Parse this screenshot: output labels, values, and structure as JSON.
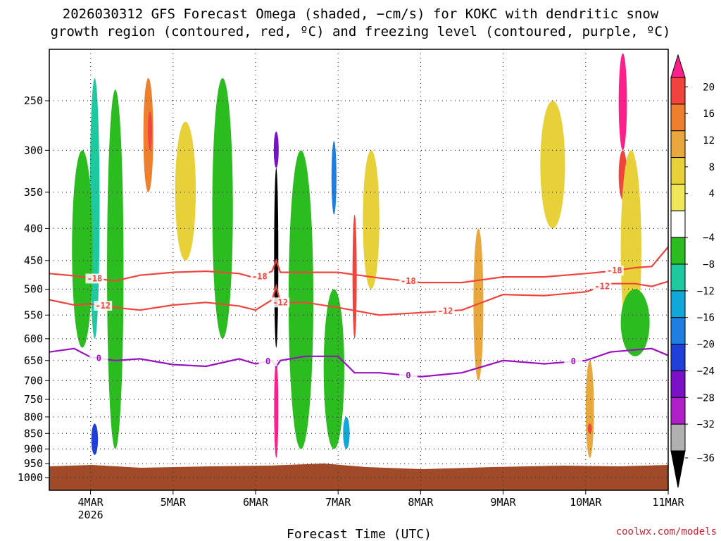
{
  "title_line1": "2026030312 GFS Forecast Omega (shaded, −cm/s) for KOKC with dendritic snow",
  "title_line2": "growth region (contoured, red, ºC) and freezing level (contoured, purple, ºC)",
  "credit": "coolwx.com/models",
  "chart_data": {
    "type": "heatmap",
    "title": "2026030312 GFS Forecast Omega (shaded, −cm/s) for KOKC with dendritic snow growth region (contoured, red, ºC) and freezing level (contoured, purple, ºC)",
    "xlabel": "Forecast Time (UTC)",
    "ylabel": "",
    "x_range_days": [
      3.5,
      11.0
    ],
    "y_range_hpa": [
      200,
      1040
    ],
    "y_ticks": [
      "250",
      "300",
      "350",
      "400",
      "450",
      "500",
      "550",
      "600",
      "650",
      "700",
      "750",
      "800",
      "850",
      "900",
      "950",
      "1000"
    ],
    "x_ticks": [
      {
        "label": "4MAR",
        "sublabel": "2026",
        "day": 4
      },
      {
        "label": "5MAR",
        "sublabel": "",
        "day": 5
      },
      {
        "label": "6MAR",
        "sublabel": "",
        "day": 6
      },
      {
        "label": "7MAR",
        "sublabel": "",
        "day": 7
      },
      {
        "label": "8MAR",
        "sublabel": "",
        "day": 8
      },
      {
        "label": "9MAR",
        "sublabel": "",
        "day": 9
      },
      {
        "label": "10MAR",
        "sublabel": "",
        "day": 10
      },
      {
        "label": "11MAR",
        "sublabel": "",
        "day": 11
      }
    ],
    "colorbar": {
      "levels": [
        "20",
        "16",
        "12",
        "8",
        "4",
        "−4",
        "−8",
        "−12",
        "−16",
        "−20",
        "−24",
        "−28",
        "−32",
        "−36"
      ],
      "colors": [
        "#ff1f8a",
        "#f0443c",
        "#ee7f2c",
        "#e8a83c",
        "#e8d038",
        "#f0e85a",
        "#ffffff",
        "#2bbd1f",
        "#1fc9a0",
        "#10a8d8",
        "#1f7fe0",
        "#1f3fd8",
        "#7a10c8",
        "#b020c8",
        "#b0b0b0",
        "#000000"
      ]
    },
    "omega_cells": [
      {
        "day": 4.05,
        "p_top": 230,
        "p_bot": 600,
        "width": 0.12,
        "value": -12
      },
      {
        "day": 3.9,
        "p_top": 300,
        "p_bot": 620,
        "width": 0.25,
        "value": -6
      },
      {
        "day": 4.05,
        "p_top": 820,
        "p_bot": 920,
        "width": 0.08,
        "value": -24
      },
      {
        "day": 4.3,
        "p_top": 240,
        "p_bot": 900,
        "width": 0.2,
        "value": -6
      },
      {
        "day": 4.7,
        "p_top": 230,
        "p_bot": 350,
        "width": 0.12,
        "value": 12
      },
      {
        "day": 4.72,
        "p_top": 260,
        "p_bot": 300,
        "width": 0.05,
        "value": 18
      },
      {
        "day": 5.15,
        "p_top": 270,
        "p_bot": 450,
        "width": 0.25,
        "value": 6
      },
      {
        "day": 5.6,
        "p_top": 230,
        "p_bot": 600,
        "width": 0.25,
        "value": -6
      },
      {
        "day": 6.25,
        "p_top": 320,
        "p_bot": 620,
        "width": 0.05,
        "value": -40
      },
      {
        "day": 6.25,
        "p_top": 280,
        "p_bot": 320,
        "width": 0.06,
        "value": -26
      },
      {
        "day": 6.25,
        "p_top": 650,
        "p_bot": 930,
        "width": 0.05,
        "value": 20
      },
      {
        "day": 6.55,
        "p_top": 300,
        "p_bot": 900,
        "width": 0.3,
        "value": -6
      },
      {
        "day": 6.95,
        "p_top": 290,
        "p_bot": 380,
        "width": 0.06,
        "value": -18
      },
      {
        "day": 7.2,
        "p_top": 380,
        "p_bot": 600,
        "width": 0.05,
        "value": 18
      },
      {
        "day": 7.1,
        "p_top": 800,
        "p_bot": 900,
        "width": 0.08,
        "value": -14
      },
      {
        "day": 6.95,
        "p_top": 500,
        "p_bot": 900,
        "width": 0.25,
        "value": -6
      },
      {
        "day": 7.4,
        "p_top": 300,
        "p_bot": 500,
        "width": 0.2,
        "value": 6
      },
      {
        "day": 8.7,
        "p_top": 400,
        "p_bot": 700,
        "width": 0.12,
        "value": 8
      },
      {
        "day": 9.6,
        "p_top": 250,
        "p_bot": 400,
        "width": 0.3,
        "value": 6
      },
      {
        "day": 10.05,
        "p_top": 650,
        "p_bot": 930,
        "width": 0.1,
        "value": 10
      },
      {
        "day": 10.05,
        "p_top": 820,
        "p_bot": 850,
        "width": 0.04,
        "value": 18
      },
      {
        "day": 10.45,
        "p_top": 210,
        "p_bot": 300,
        "width": 0.1,
        "value": 20
      },
      {
        "day": 10.45,
        "p_top": 300,
        "p_bot": 360,
        "width": 0.1,
        "value": 16
      },
      {
        "day": 10.55,
        "p_top": 300,
        "p_bot": 620,
        "width": 0.25,
        "value": 6
      },
      {
        "day": 10.6,
        "p_top": 500,
        "p_bot": 640,
        "width": 0.35,
        "value": -6
      }
    ],
    "series": [
      {
        "name": "-18",
        "color": "#f0443c",
        "label_days": [
          4.05,
          6.05,
          7.85,
          10.35
        ],
        "x": [
          3.5,
          3.8,
          4.0,
          4.3,
          4.6,
          5.0,
          5.4,
          5.8,
          6.0,
          6.2,
          6.25,
          6.3,
          6.6,
          7.0,
          7.5,
          8.0,
          8.5,
          9.0,
          9.5,
          10.0,
          10.3,
          10.6,
          10.8,
          11.0
        ],
        "p": [
          472,
          476,
          480,
          485,
          475,
          470,
          468,
          472,
          480,
          468,
          450,
          470,
          470,
          470,
          480,
          488,
          488,
          478,
          478,
          472,
          468,
          462,
          460,
          428
        ]
      },
      {
        "name": "-12",
        "color": "#f0443c",
        "label_days": [
          4.15,
          6.3,
          8.3,
          10.2
        ],
        "x": [
          3.5,
          3.8,
          4.0,
          4.3,
          4.6,
          5.0,
          5.4,
          5.8,
          6.0,
          6.2,
          6.25,
          6.3,
          6.6,
          7.0,
          7.5,
          8.0,
          8.5,
          9.0,
          9.5,
          10.0,
          10.3,
          10.6,
          10.8,
          11.0
        ],
        "p": [
          520,
          530,
          528,
          535,
          540,
          530,
          525,
          532,
          540,
          520,
          495,
          525,
          525,
          535,
          550,
          545,
          540,
          510,
          512,
          505,
          490,
          490,
          495,
          486
        ]
      },
      {
        "name": "0",
        "color": "#9a10c0",
        "label_days": [
          4.1,
          6.15,
          7.85,
          9.85
        ],
        "x": [
          3.5,
          3.8,
          4.0,
          4.3,
          4.6,
          5.0,
          5.4,
          5.8,
          6.0,
          6.2,
          6.25,
          6.3,
          6.6,
          7.0,
          7.2,
          7.5,
          8.0,
          8.5,
          9.0,
          9.5,
          10.0,
          10.3,
          10.6,
          10.8,
          11.0
        ],
        "p": [
          630,
          622,
          642,
          650,
          646,
          660,
          664,
          646,
          658,
          650,
          665,
          650,
          640,
          640,
          680,
          680,
          690,
          680,
          650,
          658,
          650,
          630,
          625,
          622,
          638
        ]
      }
    ]
  }
}
